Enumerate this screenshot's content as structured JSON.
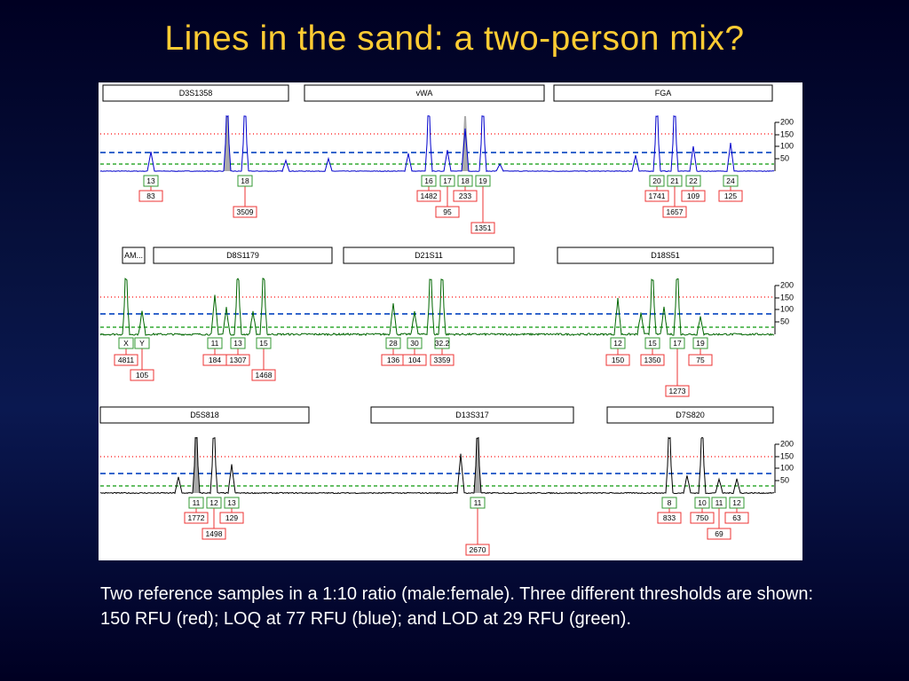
{
  "title": "Lines in the sand: a two-person mix?",
  "panels": [
    {
      "loci": [
        "D3S1358",
        "vWA",
        "FGA"
      ],
      "axis_ticks": [
        "200",
        "150",
        "100",
        "50"
      ],
      "alleles": [
        {
          "allele": "13",
          "height": "83"
        },
        {
          "allele": "18",
          "height": "3509"
        },
        {
          "allele": "16",
          "height": "1482"
        },
        {
          "allele": "17",
          "height": "95"
        },
        {
          "allele": "18",
          "height": "233"
        },
        {
          "allele": "19",
          "height": "1351"
        },
        {
          "allele": "20",
          "height": "1741"
        },
        {
          "allele": "21",
          "height": "1657"
        },
        {
          "allele": "22",
          "height": "109"
        },
        {
          "allele": "24",
          "height": "125"
        }
      ]
    },
    {
      "loci": [
        "AM...",
        "D8S1179",
        "D21S11",
        "D18S51"
      ],
      "axis_ticks": [
        "200",
        "150",
        "100",
        "50"
      ],
      "alleles": [
        {
          "allele": "X",
          "height": "4811"
        },
        {
          "allele": "Y",
          "height": "105"
        },
        {
          "allele": "11",
          "height": "184"
        },
        {
          "allele": "13",
          "height": "1307"
        },
        {
          "allele": "15",
          "height": "1468"
        },
        {
          "allele": "28",
          "height": "136"
        },
        {
          "allele": "30",
          "height": "104"
        },
        {
          "allele": "32.2",
          "height": "3359"
        },
        {
          "allele": "12",
          "height": "150"
        },
        {
          "allele": "15",
          "height": "1350"
        },
        {
          "allele": "17",
          "height": "1273"
        },
        {
          "allele": "19",
          "height": "75"
        }
      ]
    },
    {
      "loci": [
        "D5S818",
        "D13S317",
        "D7S820"
      ],
      "axis_ticks": [
        "200",
        "150",
        "100",
        "50"
      ],
      "alleles": [
        {
          "allele": "11",
          "height": "1772"
        },
        {
          "allele": "12",
          "height": "1498"
        },
        {
          "allele": "13",
          "height": "129"
        },
        {
          "allele": "11",
          "height": "2670"
        },
        {
          "allele": "8",
          "height": "833"
        },
        {
          "allele": "10",
          "height": "750"
        },
        {
          "allele": "11",
          "height": "69"
        },
        {
          "allele": "12",
          "height": "63"
        }
      ]
    }
  ],
  "caption": "Two reference samples in a 1:10 ratio (male:female).  Three different thresholds are shown: 150 RFU (red); LOQ at 77 RFU (blue); and LOD at 29 RFU (green)."
}
